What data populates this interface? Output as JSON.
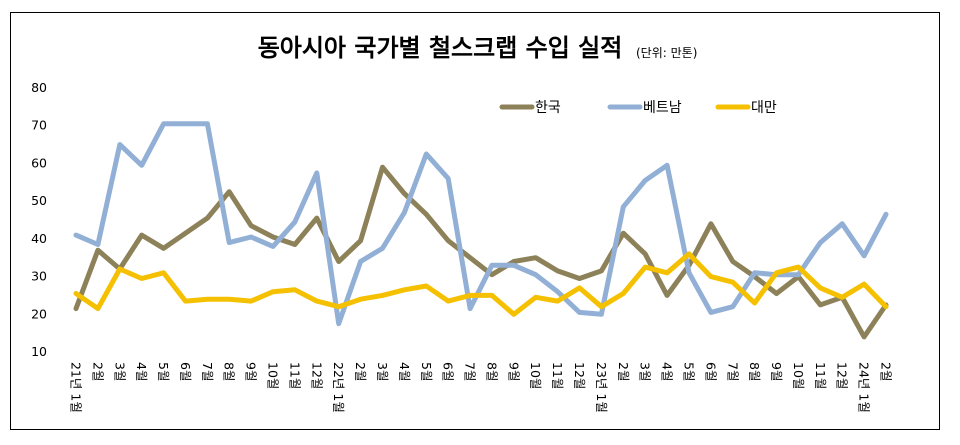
{
  "chart_data": {
    "type": "line",
    "title": "동아시아 국가별 철스크랩 수입 실적",
    "unit": "(단위: 만톤)",
    "ylim": [
      10,
      80
    ],
    "yticks": [
      10,
      20,
      30,
      40,
      50,
      60,
      70,
      80
    ],
    "categories": [
      "21년 1월",
      "2월",
      "3월",
      "4월",
      "5월",
      "6월",
      "7월",
      "8월",
      "9월",
      "10월",
      "11월",
      "12월",
      "22년 1월",
      "2월",
      "3월",
      "4월",
      "5월",
      "6월",
      "7월",
      "8월",
      "9월",
      "10월",
      "11월",
      "12월",
      "23년 1월",
      "2월",
      "3월",
      "4월",
      "5월",
      "6월",
      "7월",
      "8월",
      "9월",
      "10월",
      "11월",
      "12월",
      "24년 1월",
      "2월"
    ],
    "legend_position": "top-right",
    "grid": false,
    "series": [
      {
        "name": "한국",
        "color": "#8c8159",
        "values": [
          21.5,
          37,
          32,
          41,
          37.5,
          41.5,
          45.5,
          52.5,
          43.5,
          40.5,
          38.5,
          45.5,
          34,
          39.5,
          59,
          52,
          46.5,
          39.5,
          35,
          30.5,
          34,
          35,
          31.5,
          29.5,
          31.5,
          41.5,
          36,
          25,
          33,
          44,
          34,
          30,
          25.5,
          30,
          22.5,
          24.5,
          14,
          22.5
        ]
      },
      {
        "name": "베트남",
        "color": "#92afd6",
        "values": [
          41,
          38.5,
          65,
          59.5,
          70.5,
          70.5,
          70.5,
          39,
          40.5,
          38,
          44.5,
          57.5,
          17.5,
          34,
          37.5,
          47,
          62.5,
          56,
          21.5,
          33,
          33,
          30.5,
          26,
          20.5,
          20,
          48.5,
          55.5,
          59.5,
          31,
          20.5,
          22,
          31,
          30.5,
          30.5,
          39,
          44,
          35.5,
          46.5
        ]
      },
      {
        "name": "대만",
        "color": "#f5c000",
        "values": [
          25.5,
          21.5,
          32,
          29.5,
          31,
          23.5,
          24,
          24,
          23.5,
          26,
          26.5,
          23.5,
          22,
          24,
          25,
          26.5,
          27.5,
          23.5,
          25,
          25,
          20,
          24.5,
          23.5,
          27,
          22,
          25.5,
          32.5,
          31,
          36,
          30,
          28.5,
          23,
          31,
          32.5,
          27,
          24.5,
          28,
          22
        ]
      }
    ]
  }
}
